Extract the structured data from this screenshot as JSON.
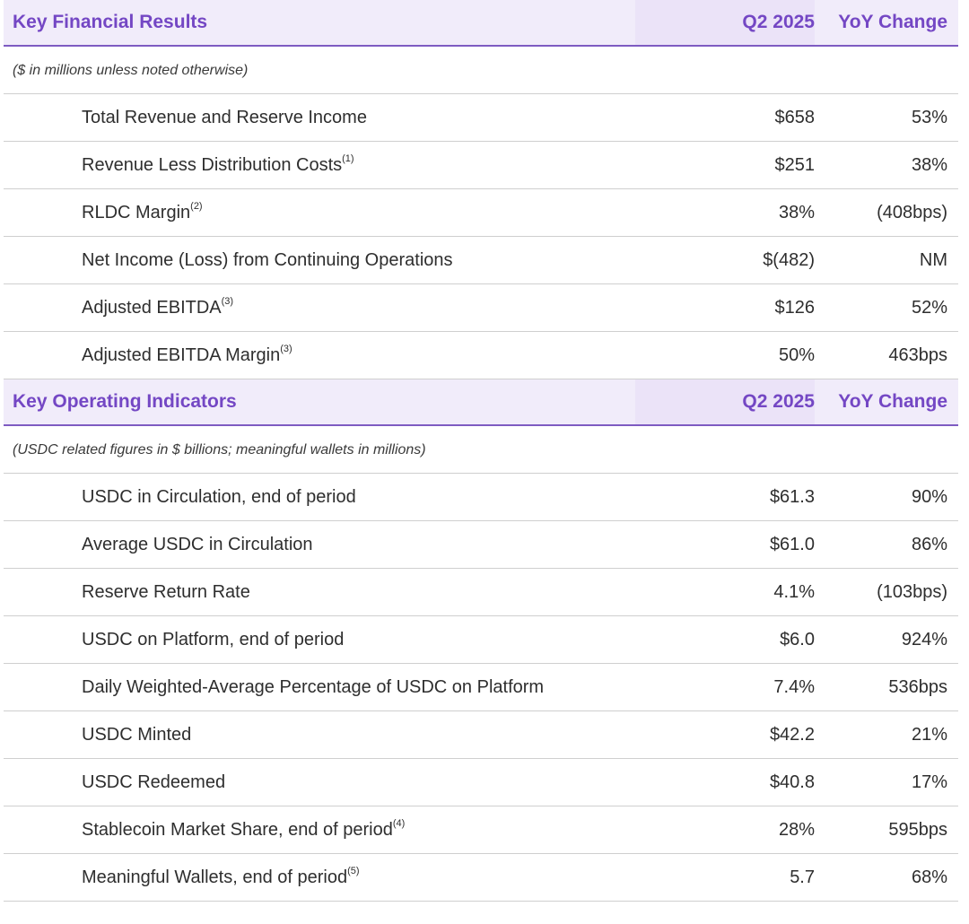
{
  "financial": {
    "title": "Key Financial Results",
    "col_q": "Q2 2025",
    "col_y": "YoY Change",
    "note": "($ in millions unless noted otherwise)",
    "rows": [
      {
        "label": "Total Revenue and Reserve Income",
        "sup": "",
        "q": "$658",
        "y": "53%"
      },
      {
        "label": "Revenue Less Distribution Costs",
        "sup": "(1)",
        "q": "$251",
        "y": "38%"
      },
      {
        "label": "RLDC Margin",
        "sup": "(2)",
        "q": "38%",
        "y": "(408bps)"
      },
      {
        "label": "Net Income (Loss) from Continuing Operations",
        "sup": "",
        "q": "$(482)",
        "y": "NM"
      },
      {
        "label": "Adjusted EBITDA",
        "sup": "(3)",
        "q": "$126",
        "y": "52%"
      },
      {
        "label": "Adjusted EBITDA Margin",
        "sup": "(3)",
        "q": "50%",
        "y": "463bps"
      }
    ]
  },
  "operating": {
    "title": "Key Operating Indicators",
    "col_q": "Q2 2025",
    "col_y": "YoY Change",
    "note": "(USDC related figures in $ billions; meaningful wallets in millions)",
    "rows": [
      {
        "label": "USDC in Circulation, end of period",
        "sup": "",
        "q": "$61.3",
        "y": "90%"
      },
      {
        "label": "Average USDC in Circulation",
        "sup": "",
        "q": "$61.0",
        "y": "86%"
      },
      {
        "label": "Reserve Return Rate",
        "sup": "",
        "q": "4.1%",
        "y": "(103bps)"
      },
      {
        "label": "USDC on Platform, end of period",
        "sup": "",
        "q": "$6.0",
        "y": "924%"
      },
      {
        "label": "Daily Weighted-Average Percentage of USDC on Platform",
        "sup": "",
        "q": "7.4%",
        "y": "536bps"
      },
      {
        "label": "USDC Minted",
        "sup": "",
        "q": "$42.2",
        "y": "21%"
      },
      {
        "label": "USDC Redeemed",
        "sup": "",
        "q": "$40.8",
        "y": "17%"
      },
      {
        "label": "Stablecoin Market Share, end of period",
        "sup": "(4)",
        "q": "28%",
        "y": "595bps"
      },
      {
        "label": "Meaningful Wallets, end of period",
        "sup": "(5)",
        "q": "5.7",
        "y": "68%"
      }
    ]
  }
}
